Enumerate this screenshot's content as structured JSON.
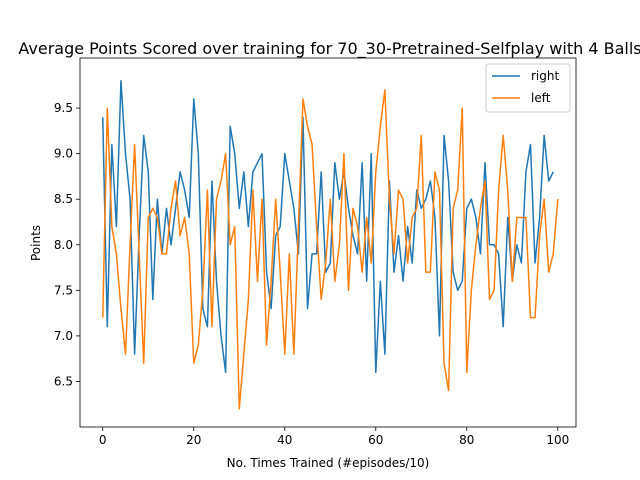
{
  "chart_data": {
    "type": "line",
    "title": "Average Points Scored over training for 70_30-Pretrained-Selfplay with 4 Balls",
    "xlabel": "No. Times Trained (#episodes/10)",
    "ylabel": "Points",
    "xlim": [
      -5,
      104
    ],
    "ylim": [
      6.0,
      10.05
    ],
    "xticks": [
      0,
      20,
      40,
      60,
      80,
      100
    ],
    "xtick_labels": [
      "0",
      "20",
      "40",
      "60",
      "80",
      "100"
    ],
    "yticks": [
      6.5,
      7.0,
      7.5,
      8.0,
      8.5,
      9.0,
      9.5
    ],
    "ytick_labels": [
      "6.5",
      "7.0",
      "7.5",
      "8.0",
      "8.5",
      "9.0",
      "9.5"
    ],
    "grid": false,
    "legend": "top-right",
    "series": [
      {
        "name": "right",
        "color": "#1f77b4",
        "values": [
          9.4,
          7.1,
          9.1,
          8.2,
          9.8,
          9.0,
          8.5,
          6.8,
          8.1,
          9.2,
          8.8,
          7.4,
          8.5,
          7.9,
          8.4,
          8.0,
          8.4,
          8.8,
          8.6,
          8.3,
          9.6,
          9.0,
          7.3,
          7.1,
          8.7,
          7.6,
          7.0,
          6.6,
          9.3,
          9.0,
          8.4,
          8.8,
          8.2,
          8.8,
          8.9,
          9.0,
          7.7,
          7.3,
          8.1,
          8.2,
          9.0,
          8.7,
          8.4,
          7.9,
          9.4,
          7.3,
          7.9,
          7.9,
          8.8,
          7.7,
          7.8,
          8.9,
          8.5,
          8.8,
          8.4,
          8.1,
          7.9,
          8.9,
          7.6,
          9.0,
          6.6,
          7.6,
          6.8,
          8.7,
          7.7,
          8.1,
          7.6,
          8.2,
          7.8,
          8.6,
          8.4,
          8.5,
          8.7,
          8.3,
          7.0,
          9.2,
          8.7,
          7.7,
          7.5,
          7.6,
          8.4,
          8.5,
          8.3,
          7.9,
          8.9,
          8.0,
          8.0,
          7.9,
          7.1,
          8.3,
          7.6,
          8.0,
          7.8,
          8.8,
          9.1,
          7.8,
          8.3,
          9.2,
          8.7,
          8.8
        ]
      },
      {
        "name": "left",
        "color": "#ff7f0e",
        "values": [
          7.2,
          9.5,
          8.2,
          7.9,
          7.3,
          6.8,
          8.0,
          9.1,
          7.9,
          6.7,
          8.3,
          8.4,
          8.3,
          7.9,
          7.9,
          8.4,
          8.7,
          8.1,
          8.3,
          7.9,
          6.7,
          6.9,
          7.5,
          8.6,
          7.1,
          8.5,
          8.7,
          9.0,
          8.0,
          8.2,
          6.2,
          6.8,
          7.4,
          8.6,
          7.6,
          8.5,
          6.9,
          7.6,
          8.5,
          7.7,
          6.8,
          7.9,
          6.8,
          8.2,
          9.6,
          9.3,
          9.1,
          8.2,
          7.4,
          7.8,
          8.5,
          7.6,
          8.0,
          9.0,
          7.5,
          8.4,
          8.2,
          7.7,
          8.3,
          7.8,
          8.8,
          9.3,
          9.7,
          8.5,
          7.9,
          8.6,
          8.5,
          7.8,
          8.3,
          8.4,
          9.2,
          7.7,
          7.7,
          8.8,
          8.6,
          6.7,
          6.4,
          8.4,
          8.6,
          9.5,
          6.6,
          7.5,
          8.0,
          8.4,
          8.7,
          7.4,
          7.5,
          8.6,
          9.2,
          8.6,
          7.6,
          8.3,
          8.3,
          8.3,
          7.2,
          7.2,
          8.1,
          8.5,
          7.7,
          7.9,
          8.5
        ]
      }
    ]
  }
}
